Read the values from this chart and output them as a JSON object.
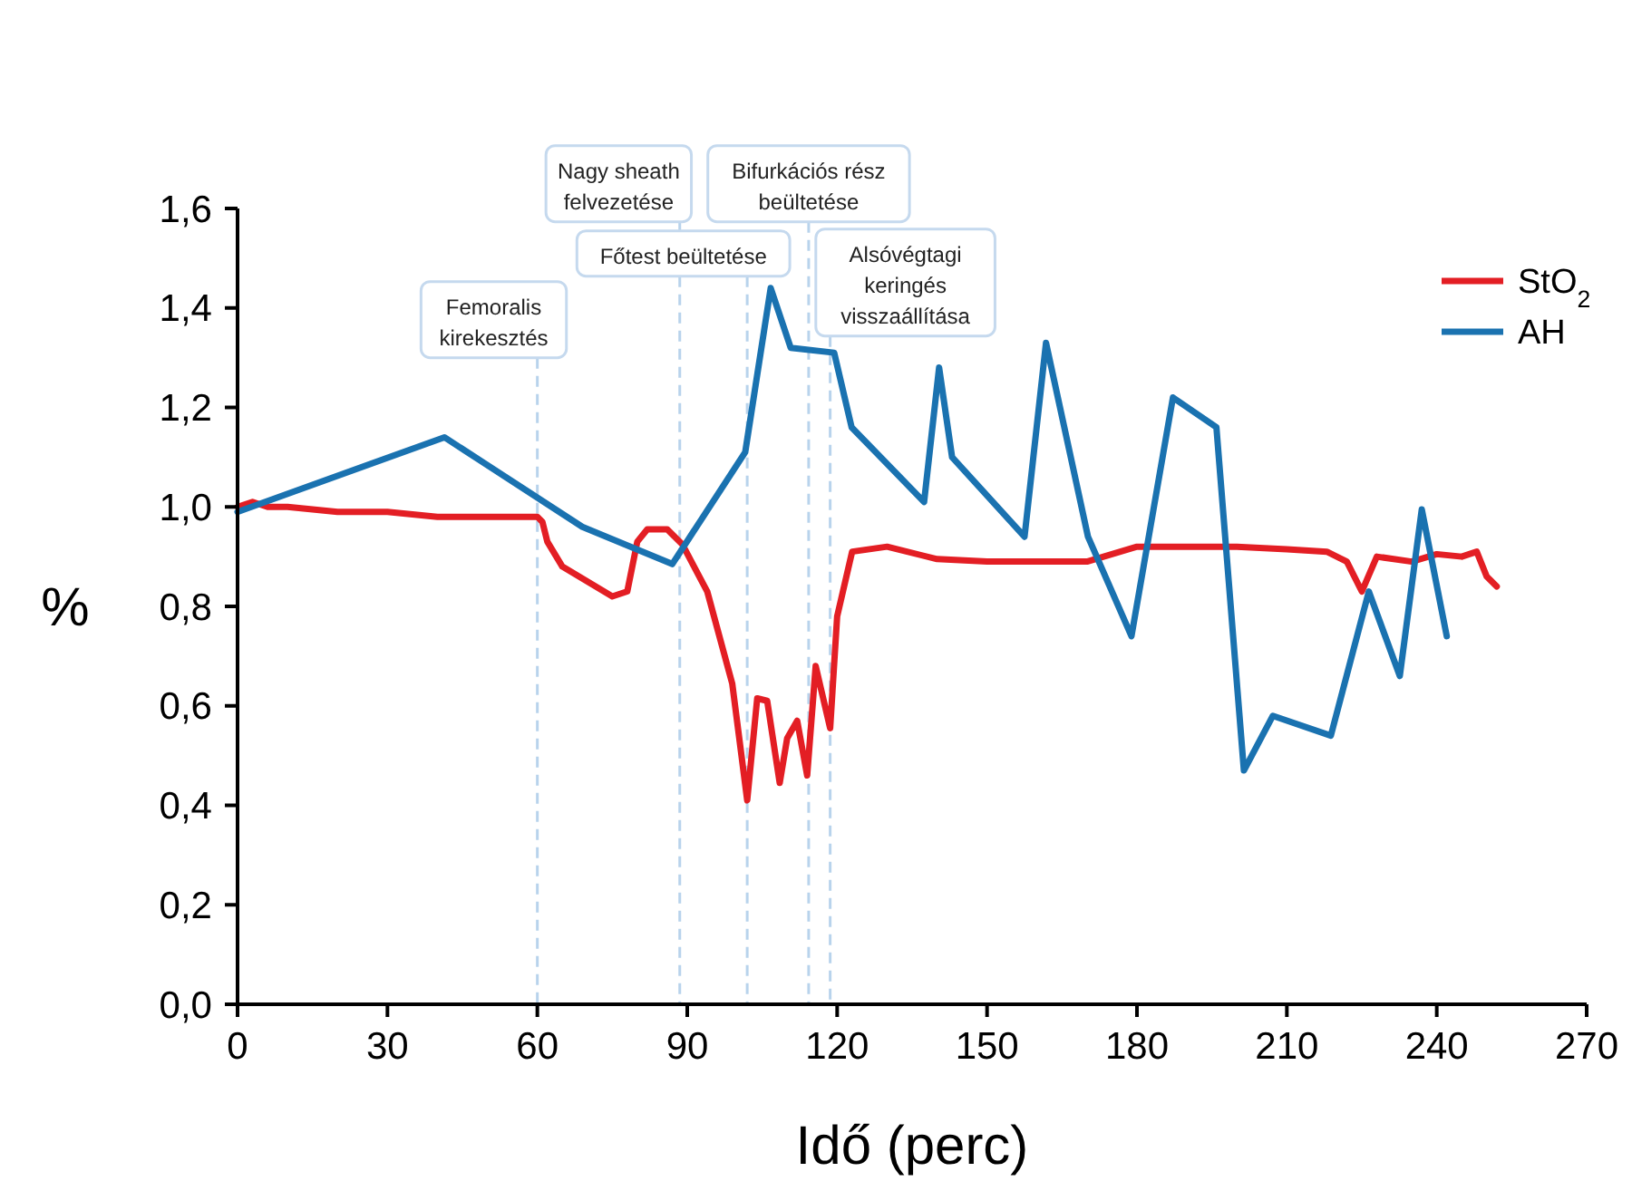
{
  "chart_data": {
    "type": "line",
    "xlabel": "Idő (perc)",
    "ylabel": "%",
    "xlim": [
      0,
      270
    ],
    "xticks": [
      0,
      30,
      60,
      90,
      120,
      150,
      180,
      210,
      240,
      270
    ],
    "ylim": [
      0,
      1.6
    ],
    "yticks": [
      {
        "value": 0,
        "label": "0,0"
      },
      {
        "value": 0.2,
        "label": "0,2"
      },
      {
        "value": 0.4,
        "label": "0,4"
      },
      {
        "value": 0.6,
        "label": "0,6"
      },
      {
        "value": 0.8,
        "label": "0,8"
      },
      {
        "value": 1,
        "label": "1,0"
      },
      {
        "value": 1.2,
        "label": "1,2"
      },
      {
        "value": 1.4,
        "label": "1,4"
      },
      {
        "value": 1.6,
        "label": "1,6"
      }
    ],
    "grid": false,
    "legend": "top right",
    "marker": "none",
    "line_style": "solid",
    "series": [
      {
        "name": "StO$_{2}$",
        "color": "#e31e24",
        "x": [
          0,
          3,
          6,
          10,
          20,
          30,
          40,
          50,
          55,
          60,
          61,
          62,
          65,
          70,
          75,
          78,
          80,
          82,
          86,
          89,
          94,
          99,
          102,
          104,
          106,
          108.5,
          110,
          112,
          114,
          115.7,
          118.6,
          120,
          123,
          130,
          140,
          150,
          160,
          170,
          180,
          190,
          200,
          210,
          218,
          222,
          225,
          228,
          235,
          240,
          245,
          248,
          250,
          252
        ],
        "values": [
          1.0,
          1.01,
          1.0,
          1.0,
          0.99,
          0.99,
          0.98,
          0.98,
          0.98,
          0.98,
          0.97,
          0.93,
          0.88,
          0.85,
          0.82,
          0.83,
          0.93,
          0.955,
          0.955,
          0.925,
          0.83,
          0.645,
          0.41,
          0.615,
          0.61,
          0.445,
          0.535,
          0.57,
          0.46,
          0.68,
          0.555,
          0.78,
          0.91,
          0.92,
          0.895,
          0.89,
          0.89,
          0.89,
          0.92,
          0.92,
          0.92,
          0.915,
          0.91,
          0.89,
          0.83,
          0.9,
          0.89,
          0.905,
          0.9,
          0.91,
          0.86,
          0.84
        ]
      },
      {
        "name": "AH",
        "color": "#1a72b0",
        "x": [
          0,
          41.4,
          69,
          87,
          101.6,
          106.7,
          110.7,
          119.4,
          122.9,
          137.4,
          140.4,
          143,
          157.5,
          161.8,
          170.2,
          178.9,
          187.2,
          195.9,
          201.4,
          207.2,
          218.8,
          226.4,
          232.6,
          237,
          242
        ],
        "values": [
          0.99,
          1.14,
          0.96,
          0.885,
          1.11,
          1.44,
          1.32,
          1.31,
          1.16,
          1.01,
          1.28,
          1.1,
          0.94,
          1.33,
          0.94,
          0.74,
          1.22,
          1.16,
          0.47,
          0.58,
          0.54,
          0.83,
          0.66,
          0.995,
          0.74
        ]
      }
    ],
    "ref_lines": [
      {
        "axis": "x",
        "value": 60,
        "label": "Femoralis\nkirekesztés",
        "color": "#b8d3ec",
        "line_style": "dashed"
      },
      {
        "axis": "x",
        "value": 88.5,
        "label": "Nagy sheath\nfelvezetése",
        "color": "#b8d3ec",
        "line_style": "dashed"
      },
      {
        "axis": "x",
        "value": 102,
        "label": "Főtest beültetése",
        "color": "#b8d3ec",
        "line_style": "dashed"
      },
      {
        "axis": "x",
        "value": 114.3,
        "label": "Bifurkációs rész\nbeültetése",
        "color": "#b8d3ec",
        "line_style": "dashed"
      },
      {
        "axis": "x",
        "value": 118.6,
        "label": "Alsóvégtagi\nkeringés\nvisszaállítása",
        "color": "#b8d3ec",
        "line_style": "dashed"
      }
    ]
  }
}
